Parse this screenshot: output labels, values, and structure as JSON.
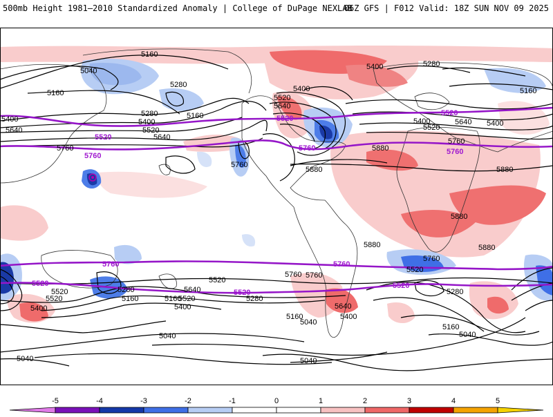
{
  "header": {
    "title": "500mb Height 1981–2010 Standardized Anomaly | College of DuPage NEXLAB",
    "run_info": "06Z GFS | F012 Valid: 18Z SUN NOV 09 2025"
  },
  "map": {
    "contour_labels": {
      "c5160_a": "5160",
      "c5040_a": "5040",
      "c5160_b": "5160",
      "c5280_a": "5280",
      "c5160_c": "5160",
      "c5280_b": "5280",
      "c5400_a": "5400",
      "c5400_b": "5400",
      "c5520_a": "5520",
      "c5640_a": "5640",
      "c5640_b": "5640",
      "c5760_a": "5760",
      "c5760_b": "5760",
      "c5520_b": "5520",
      "c5640_c": "5640",
      "c5400_c": "5400",
      "c5400_d": "5400",
      "c5400_e": "5400",
      "c5280_c": "5280",
      "c5160_d": "5160",
      "c5400_f": "5400",
      "c5520_c": "5520",
      "c5640_d": "5640",
      "c5760_c": "5760",
      "c5880_a": "5880",
      "c5880_b": "5880",
      "c5880_c": "5880",
      "c5880_d": "5880",
      "c5880_e": "5880",
      "c5880_f": "5880",
      "c5760_d": "5760",
      "c5760_e": "5760",
      "c5520_d": "5520",
      "c5400_g": "5400",
      "c5280_d": "5280",
      "c5160_e": "5160",
      "c5520_e": "5520",
      "c5400_h": "5400",
      "c5640_e": "5640",
      "c5520_f": "5520",
      "c5280_e": "5280",
      "c5160_f": "5160",
      "c5040_b": "5040",
      "c5640_f": "5640",
      "c5400_i": "5400",
      "c5040_c": "5040",
      "c5760_f": "5760",
      "c5520_g": "5520",
      "c5280_f": "5280",
      "c5160_g": "5160",
      "c5040_d": "5040",
      "c5040_e": "5040",
      "c5040_f": "5040",
      "c5160_h": "5160",
      "c5520_h": "5520"
    },
    "highlighted_labels": {
      "h5520_a": "5520",
      "h5760_a": "5760",
      "h5520_b": "5520",
      "h5760_b": "5760",
      "h5520_c": "5520",
      "h5760_c": "5760",
      "h5760_d": "5760",
      "h5760_e": "5760",
      "h5520_d": "5520",
      "h5520_e": "5520",
      "h5520_f": "5520"
    }
  },
  "legend": {
    "ticks": [
      "-5",
      "-4",
      "-3",
      "-2",
      "-1",
      "0",
      "1",
      "2",
      "3",
      "4",
      "5"
    ],
    "colors": [
      "#e07be8",
      "#7a10b8",
      "#1538a8",
      "#3f6fe6",
      "#b7cdf4",
      "#ffffff",
      "#ffffff",
      "#f8c1c1",
      "#ef6767",
      "#c00000",
      "#f5a300",
      "#f5d200"
    ]
  }
}
